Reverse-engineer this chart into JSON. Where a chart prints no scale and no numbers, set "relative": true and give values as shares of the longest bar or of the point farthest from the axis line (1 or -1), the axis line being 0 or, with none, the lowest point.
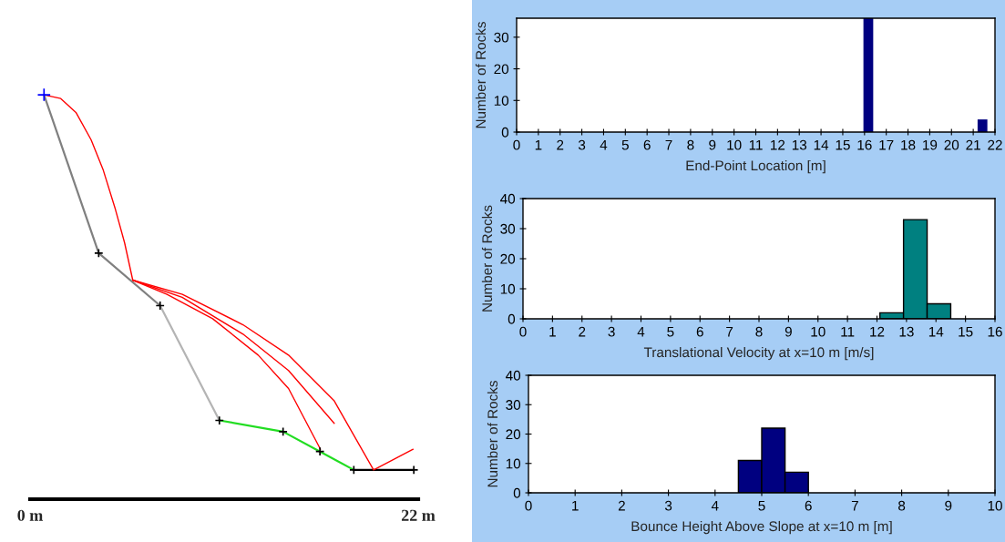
{
  "chart_data": [
    {
      "type": "line",
      "relative": true,
      "xlim": [
        0,
        22
      ],
      "xticks": [
        {
          "value": 0,
          "label": "0 m"
        },
        {
          "value": 22,
          "label": "22 m"
        }
      ],
      "tick_labels": "x",
      "grid": false,
      "series": [
        {
          "color": "#808080",
          "marker": "none",
          "x": [
            0.79,
            3.89,
            7.37
          ],
          "values": [
            1.0,
            0.578,
            0.438
          ]
        },
        {
          "color": "#b4b4b4",
          "marker": "none",
          "x": [
            7.37,
            10.73
          ],
          "values": [
            0.438,
            0.132
          ]
        },
        {
          "color": "#22dd22",
          "marker": "none",
          "x": [
            10.73,
            14.34,
            16.43,
            18.35
          ],
          "values": [
            0.132,
            0.102,
            0.049,
            0.0
          ]
        },
        {
          "color": "#000000",
          "marker": "none",
          "x": [
            18.35,
            21.75
          ],
          "values": [
            0.0,
            0.0
          ]
        },
        {
          "color": "#ff0000",
          "marker": "none",
          "x": [
            0.79,
            1.74,
            2.6,
            3.46,
            4.15,
            4.84,
            5.36,
            5.82
          ],
          "values": [
            1.0,
            0.99,
            0.953,
            0.88,
            0.799,
            0.694,
            0.605,
            0.506
          ]
        },
        {
          "color": "#ff0000",
          "marker": "none",
          "x": [
            5.82,
            7.76,
            10.35,
            12.93,
            14.65,
            16.46
          ],
          "values": [
            0.506,
            0.468,
            0.403,
            0.306,
            0.217,
            0.055
          ]
        },
        {
          "color": "#ff0000",
          "marker": "none",
          "x": [
            5.82,
            8.62,
            12.07,
            14.65,
            17.24
          ],
          "values": [
            0.506,
            0.46,
            0.362,
            0.265,
            0.124
          ]
        },
        {
          "color": "#ff0000",
          "marker": "none",
          "x": [
            5.82,
            8.63,
            12.07,
            14.65,
            17.24,
            19.47,
            21.71
          ],
          "values": [
            0.506,
            0.468,
            0.387,
            0.306,
            0.184,
            0.0,
            0.055
          ]
        },
        {
          "type": "scatter",
          "color": "#000000",
          "marker": "cross",
          "x": [
            3.89,
            7.37,
            10.73,
            14.34,
            16.43,
            18.35,
            21.75
          ],
          "values": [
            0.578,
            0.438,
            0.132,
            0.102,
            0.049,
            0.0,
            0.0
          ]
        },
        {
          "type": "scatter",
          "color": "#0000ff",
          "marker": "cross",
          "x": [
            0.79
          ],
          "values": [
            1.0
          ]
        }
      ]
    },
    {
      "type": "histogram",
      "xlabel": "End-Point Location [m]",
      "ylabel": "Number of Rocks",
      "xlim": [
        0,
        22
      ],
      "xticks": [
        0,
        1,
        2,
        3,
        4,
        5,
        6,
        7,
        8,
        9,
        10,
        11,
        12,
        13,
        14,
        15,
        16,
        17,
        18,
        19,
        20,
        21,
        22
      ],
      "ylim": [
        0,
        36
      ],
      "yticks": [
        0,
        10,
        20,
        30
      ],
      "grid": false,
      "color": "#000080",
      "bins": [
        15.95,
        16.4,
        21.2,
        21.65
      ],
      "values": [
        36,
        0,
        4
      ]
    },
    {
      "type": "histogram",
      "xlabel": "Translational Velocity at x=10 m [m/s]",
      "ylabel": "Number of Rocks",
      "xlim": [
        0,
        16
      ],
      "xticks": [
        0,
        1,
        2,
        3,
        4,
        5,
        6,
        7,
        8,
        9,
        10,
        11,
        12,
        13,
        14,
        15,
        16
      ],
      "ylim": [
        0,
        40
      ],
      "yticks": [
        0,
        10,
        20,
        30,
        40
      ],
      "grid": false,
      "color": "#008080",
      "bins": [
        12.1,
        12.9,
        13.7,
        14.5
      ],
      "values": [
        2,
        33,
        5
      ]
    },
    {
      "type": "histogram",
      "xlabel": "Bounce Height Above Slope at x=10 m [m]",
      "ylabel": "Number of Rocks",
      "xlim": [
        0,
        10
      ],
      "xticks": [
        0,
        1,
        2,
        3,
        4,
        5,
        6,
        7,
        8,
        9,
        10
      ],
      "ylim": [
        0,
        40
      ],
      "yticks": [
        0,
        10,
        20,
        30,
        40
      ],
      "grid": false,
      "color": "#000080",
      "bins": [
        4.5,
        5.0,
        5.5,
        6.0
      ],
      "values": [
        11,
        22,
        7
      ]
    }
  ]
}
